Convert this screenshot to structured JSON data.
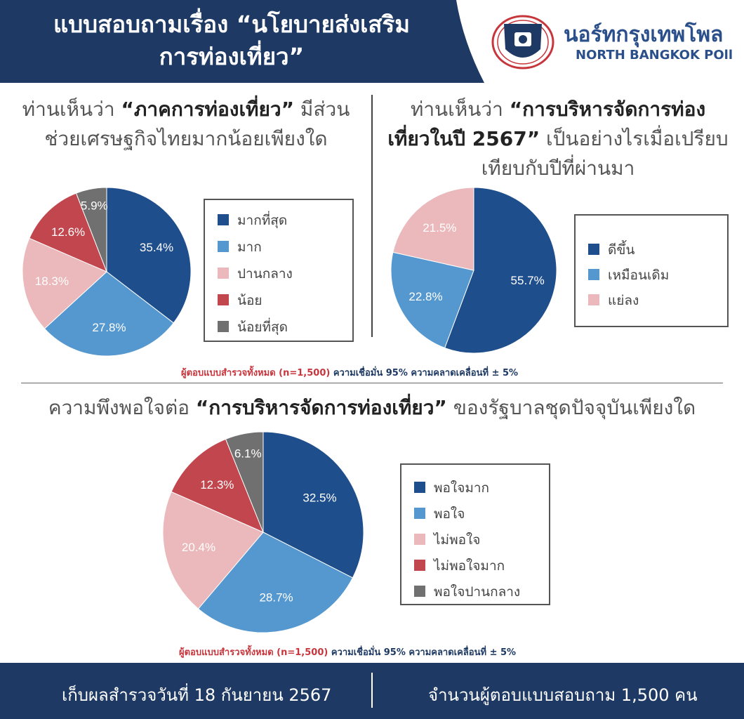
{
  "header": {
    "title_line1": "แบบสอบถามเรื่อง “นโยบายส่งเสริม",
    "title_line2": "การท่องเที่ยว”",
    "brand_th": "นอร์ทกรุงเทพโพล",
    "brand_en": "NORTH BANGKOK POll"
  },
  "q1": {
    "pre": "ท่านเห็นว่า ",
    "bold": "“ภาคการท่องเที่ยว”",
    "post": " มีส่วน",
    "line2": "ช่วยเศรษฐกิจไทยมากน้อยเพียงใด"
  },
  "q2": {
    "pre": "ท่านเห็นว่า ",
    "bold1": "“การบริหารจัดการท่อง",
    "bold2": "เที่ยวในปี 2567”",
    "post2": " เป็นอย่างไรเมื่อเปรียบ",
    "line3": "เทียบกับปีที่ผ่านมา"
  },
  "q3": {
    "pre": "ความพึงพอใจต่อ ",
    "bold": "“การบริหารจัดการท่องเที่ยว”",
    "post": " ของรัฐบาลชุดปัจจุบันเพียงใด"
  },
  "note": {
    "red": "ผู้ตอบแบบสำรวจทั้งหมด (n=1,500)",
    "blue": " ความเชื่อมั่น 95% ความคลาดเคลื่อนที่ ± 5%"
  },
  "footer": {
    "left": "เก็บผลสำรวจวันที่ 18 กันยายน 2567",
    "right": "จำนวนผู้ตอบแบบสอบถาม 1,500 คน"
  },
  "colors": {
    "navy": "#1e3a64",
    "dark_blue": "#1f4e8c",
    "light_blue": "#5598cf",
    "pink": "#ebb8bb",
    "red": "#c1464d",
    "gray": "#707070"
  },
  "chart_data": [
    {
      "type": "pie",
      "categories": [
        "มากที่สุด",
        "มาก",
        "ปานกลาง",
        "น้อย",
        "น้อยที่สุด"
      ],
      "values": [
        35.4,
        27.8,
        18.3,
        12.6,
        5.9
      ],
      "labels": [
        "35.4%",
        "27.8%",
        "18.3%",
        "12.6%",
        "5.9%"
      ],
      "colors": [
        "#1f4e8c",
        "#5598cf",
        "#ebb8bb",
        "#c1464d",
        "#707070"
      ],
      "legend": "right"
    },
    {
      "type": "pie",
      "categories": [
        "ดีขึ้น",
        "เหมือนเดิม",
        "แย่ลง"
      ],
      "values": [
        55.7,
        22.8,
        21.5
      ],
      "labels": [
        "55.7%",
        "22.8%",
        "21.5%"
      ],
      "colors": [
        "#1f4e8c",
        "#5598cf",
        "#ebb8bb"
      ],
      "legend": "right"
    },
    {
      "type": "pie",
      "categories": [
        "พอใจมาก",
        "พอใจ",
        "ไม่พอใจ",
        "ไม่พอใจมาก",
        "พอใจปานกลาง"
      ],
      "values": [
        32.5,
        28.7,
        20.4,
        12.3,
        6.1
      ],
      "labels": [
        "32.5%",
        "28.7%",
        "20.4%",
        "12.3%",
        "6.1%"
      ],
      "colors": [
        "#1f4e8c",
        "#5598cf",
        "#ebb8bb",
        "#c1464d",
        "#707070"
      ],
      "legend": "right"
    }
  ]
}
